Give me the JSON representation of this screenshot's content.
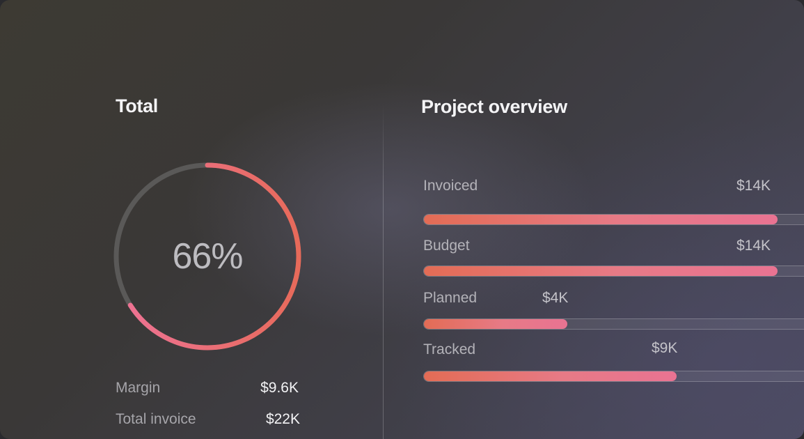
{
  "total": {
    "title": "Total",
    "percent_label": "66%",
    "percent_value": 0.66,
    "ring_colors": {
      "track": "#5a5958",
      "start": "#e76a5a",
      "end": "#ee7396"
    },
    "stats": [
      {
        "label": "Margin",
        "value": "$9.6K"
      },
      {
        "label": "Total invoice",
        "value": "$22K"
      }
    ]
  },
  "overview": {
    "title": "Project overview",
    "bars": [
      {
        "label": "Invoiced",
        "value": "$14K",
        "fraction": 0.91
      },
      {
        "label": "Budget",
        "value": "$14K",
        "fraction": 0.91
      },
      {
        "label": "Planned",
        "value": "$4K",
        "fraction": 0.37
      },
      {
        "label": "Tracked",
        "value": "$9K",
        "fraction": 0.65
      }
    ],
    "bar_colors": {
      "start": "#e36c55",
      "end": "#e97392"
    }
  }
}
